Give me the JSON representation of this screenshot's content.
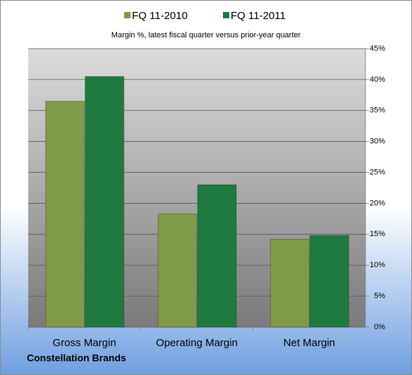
{
  "chart_data": {
    "type": "bar",
    "subtitle": "Margin %,  latest fiscal quarter versus prior-year quarter",
    "caption": "Constellation Brands",
    "categories": [
      "Gross Margin",
      "Operating Margin",
      "Net Margin"
    ],
    "series": [
      {
        "name": "FQ 11-2010",
        "color": "#7f9a48",
        "values": [
          36.5,
          18.3,
          14.2
        ]
      },
      {
        "name": "FQ 11-2011",
        "color": "#1e7a3e",
        "values": [
          40.5,
          23.0,
          14.8
        ]
      }
    ],
    "ylim": [
      0,
      45
    ],
    "yticks": [
      {
        "value": 0,
        "label": "0%"
      },
      {
        "value": 5,
        "label": "5%"
      },
      {
        "value": 10,
        "label": "10%"
      },
      {
        "value": 15,
        "label": "15%"
      },
      {
        "value": 20,
        "label": "20%"
      },
      {
        "value": 25,
        "label": "25%"
      },
      {
        "value": 30,
        "label": "30%"
      },
      {
        "value": 35,
        "label": "35%"
      },
      {
        "value": 40,
        "label": "40%"
      },
      {
        "value": 45,
        "label": "45%"
      }
    ],
    "grid": true,
    "legend": "top"
  }
}
